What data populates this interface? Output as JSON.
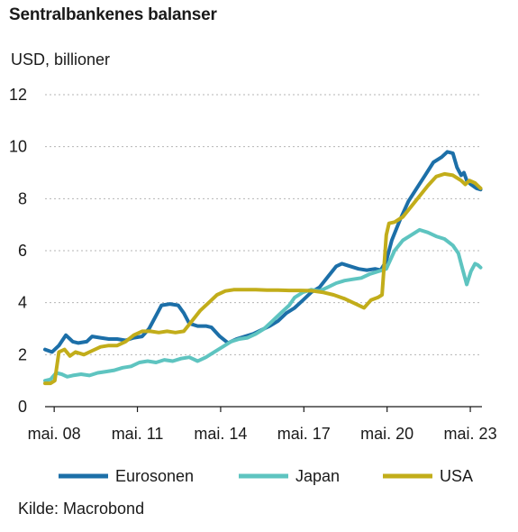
{
  "title": "Sentralbankenes balanser",
  "unit_label": "USD, billioner",
  "source": "Kilde: Macrobond",
  "chart_data": {
    "type": "line",
    "ylim": [
      0,
      12
    ],
    "yticks": [
      0,
      2,
      4,
      6,
      8,
      10,
      12
    ],
    "xlim": [
      2008.0,
      2023.75
    ],
    "xticks": [
      {
        "value": 2008.33,
        "label": "mai. 08"
      },
      {
        "value": 2011.33,
        "label": "mai. 11"
      },
      {
        "value": 2014.33,
        "label": "mai. 14"
      },
      {
        "value": 2017.33,
        "label": "mai. 17"
      },
      {
        "value": 2020.33,
        "label": "mai. 20"
      },
      {
        "value": 2023.33,
        "label": "mai. 23"
      }
    ],
    "grid": "horizontal dashed",
    "legend_position": "bottom",
    "series": [
      {
        "name": "Eurosonen",
        "color": "#1c6fa8",
        "points": [
          [
            2008.0,
            2.2
          ],
          [
            2008.25,
            2.1
          ],
          [
            2008.5,
            2.35
          ],
          [
            2008.75,
            2.75
          ],
          [
            2008.9,
            2.6
          ],
          [
            2009.0,
            2.5
          ],
          [
            2009.2,
            2.45
          ],
          [
            2009.5,
            2.5
          ],
          [
            2009.7,
            2.7
          ],
          [
            2010.0,
            2.65
          ],
          [
            2010.3,
            2.6
          ],
          [
            2010.6,
            2.6
          ],
          [
            2010.9,
            2.55
          ],
          [
            2011.2,
            2.65
          ],
          [
            2011.5,
            2.7
          ],
          [
            2011.75,
            3.0
          ],
          [
            2012.0,
            3.5
          ],
          [
            2012.2,
            3.9
          ],
          [
            2012.5,
            3.95
          ],
          [
            2012.8,
            3.9
          ],
          [
            2013.0,
            3.6
          ],
          [
            2013.2,
            3.2
          ],
          [
            2013.5,
            3.1
          ],
          [
            2013.8,
            3.1
          ],
          [
            2014.0,
            3.05
          ],
          [
            2014.3,
            2.7
          ],
          [
            2014.6,
            2.45
          ],
          [
            2014.9,
            2.6
          ],
          [
            2015.2,
            2.7
          ],
          [
            2015.5,
            2.8
          ],
          [
            2015.8,
            2.95
          ],
          [
            2016.1,
            3.1
          ],
          [
            2016.4,
            3.3
          ],
          [
            2016.7,
            3.6
          ],
          [
            2017.0,
            3.8
          ],
          [
            2017.3,
            4.1
          ],
          [
            2017.6,
            4.4
          ],
          [
            2017.9,
            4.6
          ],
          [
            2018.2,
            5.0
          ],
          [
            2018.5,
            5.4
          ],
          [
            2018.7,
            5.5
          ],
          [
            2019.0,
            5.4
          ],
          [
            2019.3,
            5.3
          ],
          [
            2019.6,
            5.25
          ],
          [
            2019.9,
            5.3
          ],
          [
            2020.1,
            5.25
          ],
          [
            2020.3,
            5.6
          ],
          [
            2020.5,
            6.4
          ],
          [
            2020.8,
            7.2
          ],
          [
            2021.1,
            7.9
          ],
          [
            2021.4,
            8.4
          ],
          [
            2021.7,
            8.9
          ],
          [
            2022.0,
            9.4
          ],
          [
            2022.3,
            9.6
          ],
          [
            2022.5,
            9.8
          ],
          [
            2022.7,
            9.75
          ],
          [
            2022.85,
            9.2
          ],
          [
            2023.0,
            8.9
          ],
          [
            2023.1,
            9.0
          ],
          [
            2023.2,
            8.7
          ],
          [
            2023.35,
            8.55
          ],
          [
            2023.55,
            8.4
          ],
          [
            2023.7,
            8.35
          ]
        ]
      },
      {
        "name": "Japan",
        "color": "#5ec4c0",
        "points": [
          [
            2008.0,
            1.0
          ],
          [
            2008.2,
            1.05
          ],
          [
            2008.4,
            1.3
          ],
          [
            2008.6,
            1.25
          ],
          [
            2008.8,
            1.15
          ],
          [
            2009.0,
            1.2
          ],
          [
            2009.3,
            1.25
          ],
          [
            2009.6,
            1.2
          ],
          [
            2009.9,
            1.3
          ],
          [
            2010.2,
            1.35
          ],
          [
            2010.5,
            1.4
          ],
          [
            2010.8,
            1.5
          ],
          [
            2011.1,
            1.55
          ],
          [
            2011.4,
            1.7
          ],
          [
            2011.7,
            1.75
          ],
          [
            2012.0,
            1.7
          ],
          [
            2012.3,
            1.8
          ],
          [
            2012.6,
            1.75
          ],
          [
            2012.9,
            1.85
          ],
          [
            2013.2,
            1.9
          ],
          [
            2013.5,
            1.75
          ],
          [
            2013.8,
            1.9
          ],
          [
            2014.1,
            2.1
          ],
          [
            2014.4,
            2.3
          ],
          [
            2014.7,
            2.5
          ],
          [
            2015.0,
            2.6
          ],
          [
            2015.3,
            2.65
          ],
          [
            2015.6,
            2.8
          ],
          [
            2015.9,
            3.0
          ],
          [
            2016.2,
            3.3
          ],
          [
            2016.5,
            3.6
          ],
          [
            2016.8,
            3.9
          ],
          [
            2017.0,
            4.2
          ],
          [
            2017.3,
            4.4
          ],
          [
            2017.6,
            4.5
          ],
          [
            2017.9,
            4.45
          ],
          [
            2018.2,
            4.6
          ],
          [
            2018.5,
            4.75
          ],
          [
            2018.8,
            4.85
          ],
          [
            2019.1,
            4.9
          ],
          [
            2019.4,
            4.95
          ],
          [
            2019.7,
            5.1
          ],
          [
            2020.0,
            5.2
          ],
          [
            2020.3,
            5.3
          ],
          [
            2020.6,
            6.0
          ],
          [
            2020.9,
            6.4
          ],
          [
            2021.2,
            6.6
          ],
          [
            2021.5,
            6.8
          ],
          [
            2021.8,
            6.7
          ],
          [
            2022.1,
            6.55
          ],
          [
            2022.4,
            6.45
          ],
          [
            2022.7,
            6.2
          ],
          [
            2022.9,
            5.9
          ],
          [
            2023.05,
            5.3
          ],
          [
            2023.2,
            4.7
          ],
          [
            2023.35,
            5.2
          ],
          [
            2023.5,
            5.5
          ],
          [
            2023.6,
            5.45
          ],
          [
            2023.7,
            5.35
          ]
        ]
      },
      {
        "name": "USA",
        "color": "#c2ad1a",
        "points": [
          [
            2008.0,
            0.9
          ],
          [
            2008.2,
            0.9
          ],
          [
            2008.35,
            1.0
          ],
          [
            2008.5,
            2.1
          ],
          [
            2008.7,
            2.2
          ],
          [
            2008.9,
            1.95
          ],
          [
            2009.1,
            2.1
          ],
          [
            2009.4,
            2.0
          ],
          [
            2009.7,
            2.15
          ],
          [
            2010.0,
            2.3
          ],
          [
            2010.3,
            2.35
          ],
          [
            2010.6,
            2.35
          ],
          [
            2010.9,
            2.5
          ],
          [
            2011.2,
            2.75
          ],
          [
            2011.5,
            2.9
          ],
          [
            2011.8,
            2.9
          ],
          [
            2012.1,
            2.85
          ],
          [
            2012.4,
            2.9
          ],
          [
            2012.7,
            2.85
          ],
          [
            2013.0,
            2.9
          ],
          [
            2013.3,
            3.3
          ],
          [
            2013.6,
            3.7
          ],
          [
            2013.9,
            4.0
          ],
          [
            2014.2,
            4.3
          ],
          [
            2014.5,
            4.45
          ],
          [
            2014.8,
            4.5
          ],
          [
            2015.2,
            4.5
          ],
          [
            2015.6,
            4.5
          ],
          [
            2016.0,
            4.48
          ],
          [
            2016.4,
            4.48
          ],
          [
            2016.8,
            4.47
          ],
          [
            2017.2,
            4.47
          ],
          [
            2017.6,
            4.46
          ],
          [
            2018.0,
            4.4
          ],
          [
            2018.4,
            4.3
          ],
          [
            2018.8,
            4.15
          ],
          [
            2019.2,
            3.95
          ],
          [
            2019.5,
            3.8
          ],
          [
            2019.75,
            4.1
          ],
          [
            2020.0,
            4.2
          ],
          [
            2020.15,
            4.3
          ],
          [
            2020.3,
            6.6
          ],
          [
            2020.4,
            7.05
          ],
          [
            2020.6,
            7.1
          ],
          [
            2020.9,
            7.3
          ],
          [
            2021.2,
            7.7
          ],
          [
            2021.5,
            8.1
          ],
          [
            2021.8,
            8.5
          ],
          [
            2022.1,
            8.85
          ],
          [
            2022.4,
            8.95
          ],
          [
            2022.7,
            8.9
          ],
          [
            2023.0,
            8.7
          ],
          [
            2023.15,
            8.55
          ],
          [
            2023.3,
            8.7
          ],
          [
            2023.5,
            8.6
          ],
          [
            2023.6,
            8.5
          ],
          [
            2023.7,
            8.4
          ]
        ]
      }
    ]
  }
}
